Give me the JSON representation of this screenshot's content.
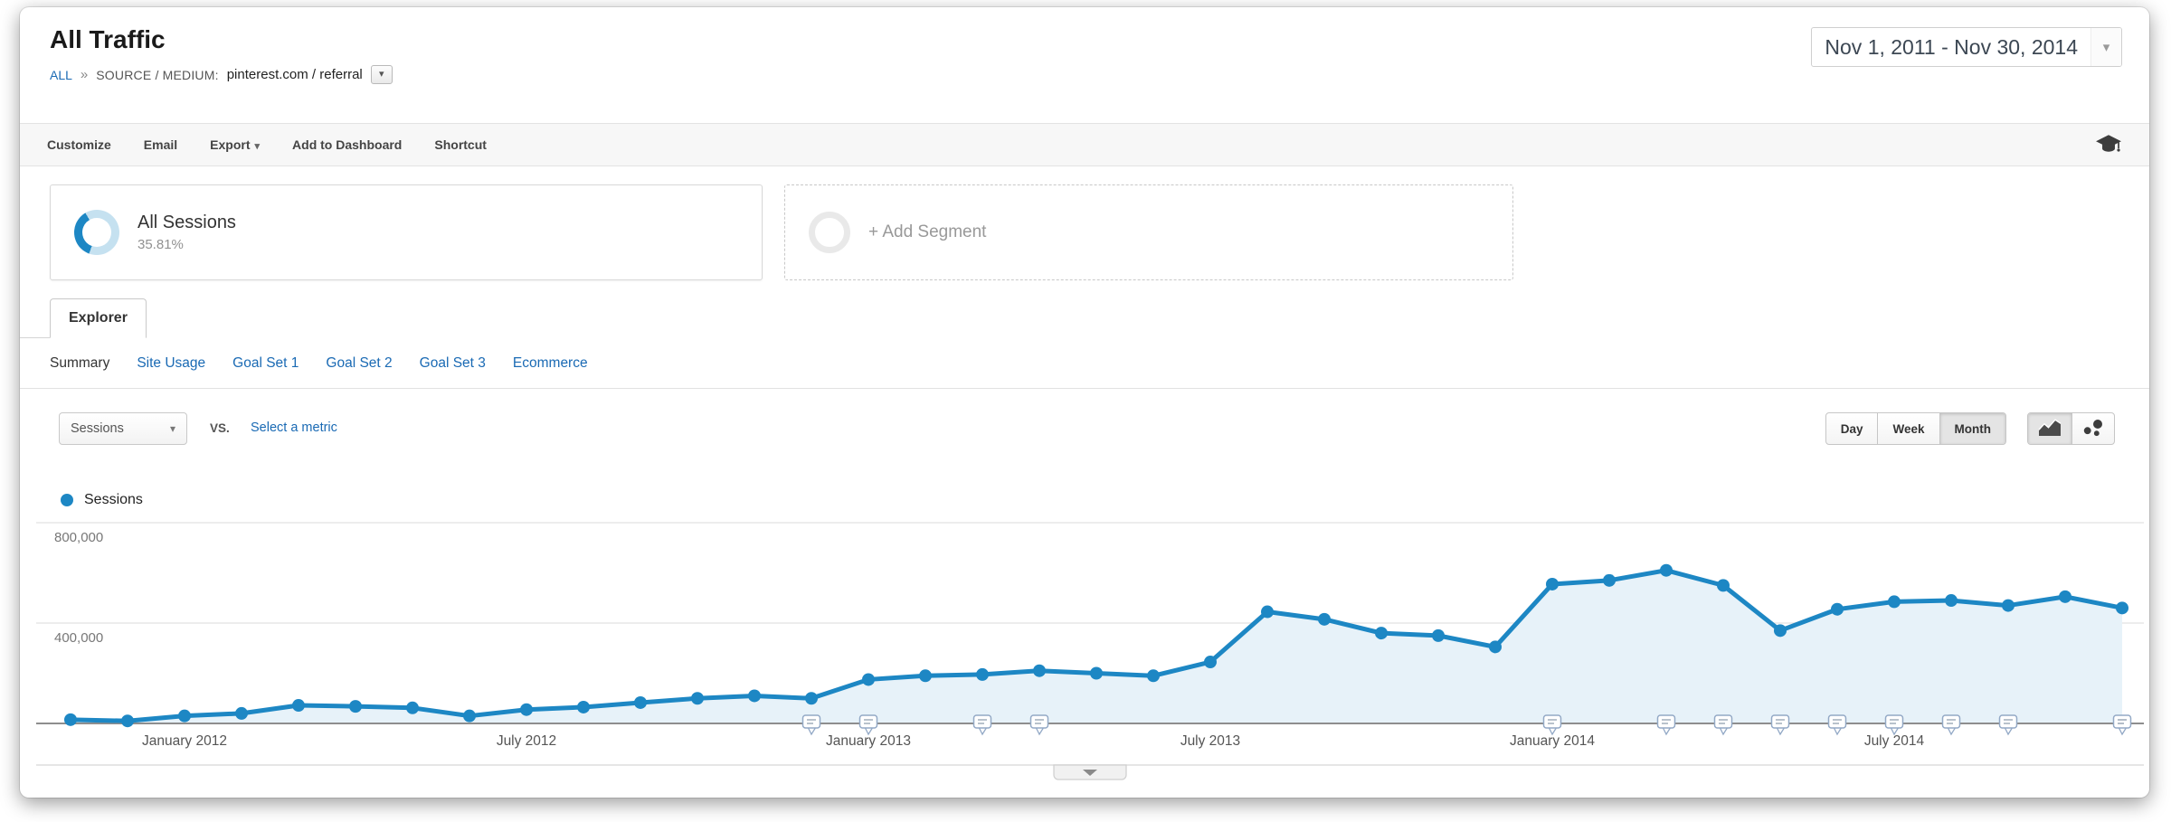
{
  "page_title": "All Traffic",
  "breadcrumb": {
    "root": "ALL",
    "separator": "»",
    "label": "SOURCE / MEDIUM:",
    "value": "pinterest.com / referral"
  },
  "date_range": {
    "value": "Nov 1, 2011 - Nov 30, 2014"
  },
  "toolbar": {
    "items": [
      "Customize",
      "Email",
      "Export",
      "Add to Dashboard",
      "Shortcut"
    ]
  },
  "segments": {
    "all_sessions": {
      "title": "All Sessions",
      "percent": "35.81%"
    },
    "add_segment_label": "+ Add Segment"
  },
  "explorer_tab": "Explorer",
  "subtabs": {
    "items": [
      "Summary",
      "Site Usage",
      "Goal Set 1",
      "Goal Set 2",
      "Goal Set 3",
      "Ecommerce"
    ],
    "active": "Summary"
  },
  "controls": {
    "metric_selector": "Sessions",
    "vs_label": "VS.",
    "compare_link": "Select a metric",
    "granularity": {
      "items": [
        "Day",
        "Week",
        "Month"
      ],
      "active": "Month"
    }
  },
  "legend": {
    "series": "Sessions"
  },
  "colors": {
    "line": "#1d87c4",
    "fill": "#e7f2f9",
    "link": "#1a6ab4"
  },
  "chart_data": {
    "type": "line",
    "x": [
      "Nov 2011",
      "Dec 2011",
      "Jan 2012",
      "Feb 2012",
      "Mar 2012",
      "Apr 2012",
      "May 2012",
      "Jun 2012",
      "Jul 2012",
      "Aug 2012",
      "Sep 2012",
      "Oct 2012",
      "Nov 2012",
      "Dec 2012",
      "Jan 2013",
      "Feb 2013",
      "Mar 2013",
      "Apr 2013",
      "May 2013",
      "Jun 2013",
      "Jul 2013",
      "Aug 2013",
      "Sep 2013",
      "Oct 2013",
      "Nov 2013",
      "Dec 2013",
      "Jan 2014",
      "Feb 2014",
      "Mar 2014",
      "Apr 2014",
      "May 2014",
      "Jun 2014",
      "Jul 2014",
      "Aug 2014",
      "Sep 2014",
      "Oct 2014",
      "Nov 2014"
    ],
    "series": [
      {
        "name": "Sessions",
        "values": [
          15000,
          10000,
          30000,
          40000,
          72000,
          68000,
          62000,
          30000,
          55000,
          65000,
          83000,
          100000,
          110000,
          100000,
          175000,
          190000,
          195000,
          210000,
          200000,
          190000,
          245000,
          445000,
          415000,
          360000,
          350000,
          305000,
          555000,
          570000,
          610000,
          550000,
          370000,
          455000,
          485000,
          490000,
          470000,
          505000,
          460000
        ]
      }
    ],
    "y_ticks": [
      {
        "value": 800000,
        "label": "800,000"
      },
      {
        "value": 400000,
        "label": "400,000"
      }
    ],
    "x_tick_labels": [
      {
        "index": 2,
        "label": "January 2012"
      },
      {
        "index": 8,
        "label": "July 2012"
      },
      {
        "index": 14,
        "label": "January 2013"
      },
      {
        "index": 20,
        "label": "July 2013"
      },
      {
        "index": 26,
        "label": "January 2014"
      },
      {
        "index": 32,
        "label": "July 2014"
      }
    ],
    "ylim": [
      0,
      850000
    ],
    "grid": "horizontal",
    "legend_position": "top-left",
    "annotation_indices": [
      13,
      14,
      16,
      17,
      26,
      28,
      29,
      30,
      31,
      32,
      33,
      34,
      36
    ]
  }
}
